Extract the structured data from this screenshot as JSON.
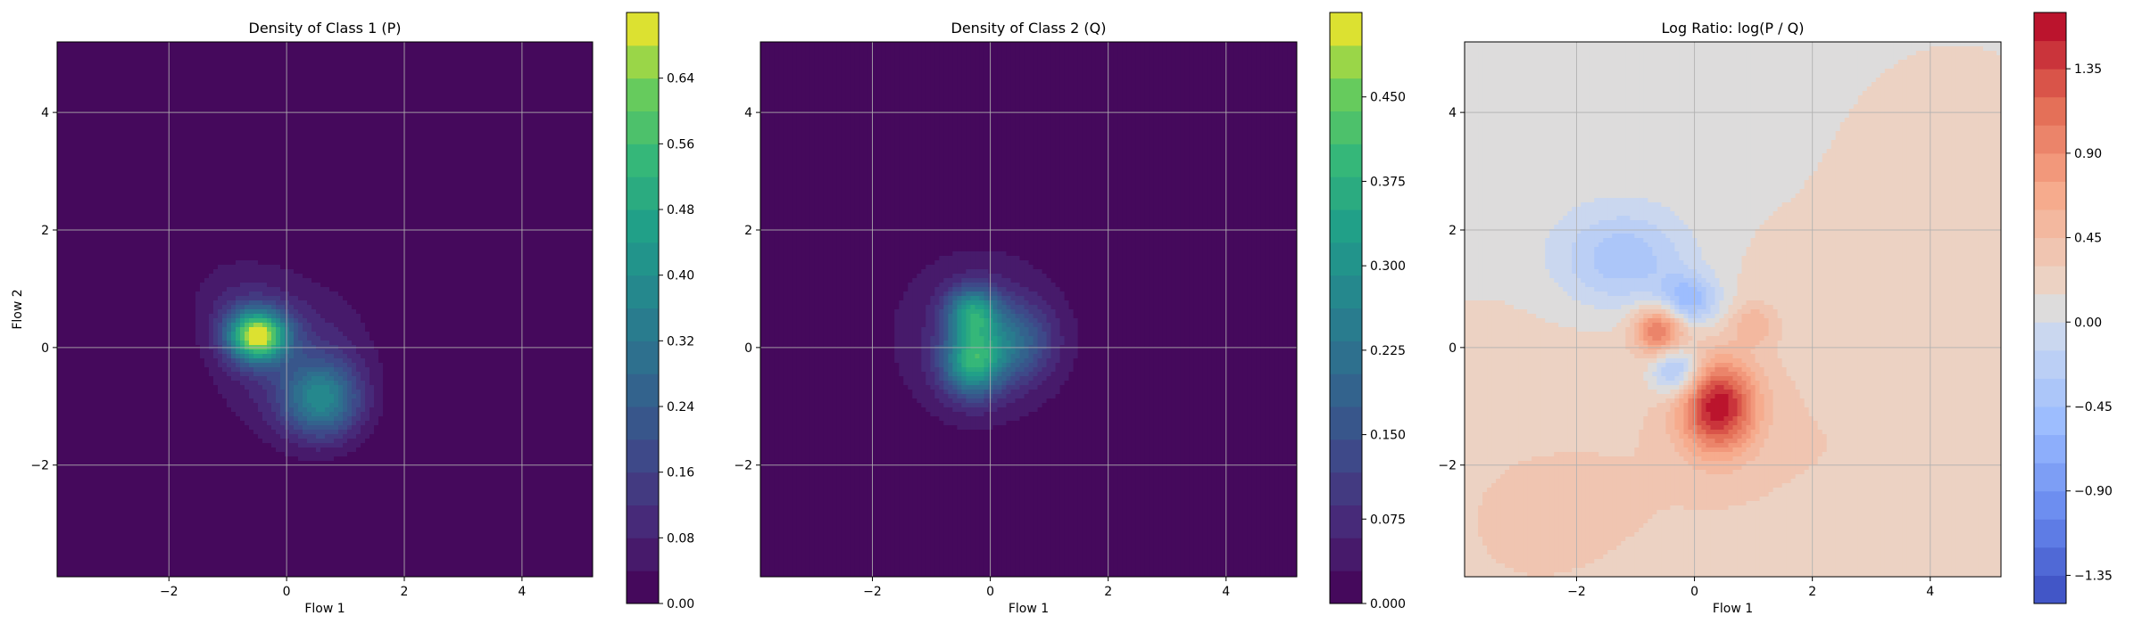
{
  "figure": {
    "background": "#ffffff"
  },
  "chart_data": [
    {
      "type": "heatmap",
      "title": "Density of Class 1 (P)",
      "xlabel": "Flow 1",
      "ylabel": "Flow 2",
      "xlim": [
        -3.9,
        5.2
      ],
      "ylim": [
        -3.9,
        5.2
      ],
      "xticks": [
        -2,
        0,
        2,
        4
      ],
      "yticks": [
        -2,
        0,
        2,
        4
      ],
      "xtick_labels": [
        "−2",
        "0",
        "2",
        "4"
      ],
      "ytick_labels": [
        "−2",
        "0",
        "2",
        "4"
      ],
      "grid": true,
      "colormap": "viridis",
      "colorbar": {
        "min": 0.0,
        "max": 0.72,
        "ticks": [
          0.0,
          0.08,
          0.16,
          0.24,
          0.32,
          0.4,
          0.48,
          0.56,
          0.64
        ],
        "tick_labels": [
          "0.00",
          "0.08",
          "0.16",
          "0.24",
          "0.32",
          "0.40",
          "0.48",
          "0.56",
          "0.64"
        ]
      },
      "density_components": [
        {
          "cx": -0.5,
          "cy": 0.2,
          "sx": 0.35,
          "sy": 0.3,
          "amp": 0.66
        },
        {
          "cx": 0.6,
          "cy": -0.9,
          "sx": 0.45,
          "sy": 0.45,
          "amp": 0.32
        },
        {
          "cx": 0.1,
          "cy": -0.2,
          "sx": 0.9,
          "sy": 0.9,
          "amp": 0.12
        },
        {
          "cx": -0.9,
          "cy": 0.9,
          "sx": 0.6,
          "sy": 0.5,
          "amp": 0.05
        }
      ]
    },
    {
      "type": "heatmap",
      "title": "Density of Class 2 (Q)",
      "xlabel": "Flow 1",
      "ylabel": "",
      "xlim": [
        -3.9,
        5.2
      ],
      "ylim": [
        -3.9,
        5.2
      ],
      "xticks": [
        -2,
        0,
        2,
        4
      ],
      "yticks": [
        -2,
        0,
        2,
        4
      ],
      "xtick_labels": [
        "−2",
        "0",
        "2",
        "4"
      ],
      "ytick_labels": [
        "−2",
        "0",
        "2",
        "4"
      ],
      "grid": true,
      "colormap": "viridis",
      "colorbar": {
        "min": 0.0,
        "max": 0.525,
        "ticks": [
          0.0,
          0.075,
          0.15,
          0.225,
          0.3,
          0.375,
          0.45
        ],
        "tick_labels": [
          "0.000",
          "0.075",
          "0.150",
          "0.225",
          "0.300",
          "0.375",
          "0.450"
        ]
      },
      "density_components": [
        {
          "cx": -0.3,
          "cy": -0.25,
          "sx": 0.35,
          "sy": 0.4,
          "amp": 0.3
        },
        {
          "cx": -0.3,
          "cy": 0.6,
          "sx": 0.3,
          "sy": 0.3,
          "amp": 0.26
        },
        {
          "cx": 0.4,
          "cy": 0.1,
          "sx": 0.45,
          "sy": 0.45,
          "amp": 0.15
        },
        {
          "cx": -0.2,
          "cy": 0.2,
          "sx": 1.1,
          "sy": 1.1,
          "amp": 0.07
        }
      ]
    },
    {
      "type": "heatmap",
      "title": "Log Ratio: log(P / Q)",
      "xlabel": "Flow 1",
      "ylabel": "",
      "xlim": [
        -3.9,
        5.2
      ],
      "ylim": [
        -3.9,
        5.2
      ],
      "xticks": [
        -2,
        0,
        2,
        4
      ],
      "yticks": [
        -2,
        0,
        2,
        4
      ],
      "xtick_labels": [
        "−2",
        "0",
        "2",
        "4"
      ],
      "ytick_labels": [
        "−2",
        "0",
        "2",
        "4"
      ],
      "grid": true,
      "colormap": "coolwarm",
      "colorbar": {
        "min": -1.5,
        "max": 1.65,
        "ticks": [
          -1.35,
          -0.9,
          -0.45,
          0.0,
          0.45,
          0.9,
          1.35
        ],
        "tick_labels": [
          "−1.35",
          "−0.90",
          "−0.45",
          "0.00",
          "0.45",
          "0.90",
          "1.35"
        ]
      },
      "ratio_components": [
        {
          "cx": 0.4,
          "cy": -1.0,
          "sx": 0.45,
          "sy": 0.55,
          "amp": 1.35
        },
        {
          "cx": -0.6,
          "cy": 0.3,
          "sx": 0.3,
          "sy": 0.3,
          "amp": 0.95
        },
        {
          "cx": 1.0,
          "cy": 0.4,
          "sx": 0.25,
          "sy": 0.25,
          "amp": 0.35
        },
        {
          "cx": -0.1,
          "cy": 0.8,
          "sx": 0.35,
          "sy": 0.3,
          "amp": -0.7
        },
        {
          "cx": -0.3,
          "cy": -0.4,
          "sx": 0.3,
          "sy": 0.3,
          "amp": -0.75
        },
        {
          "cx": -1.2,
          "cy": 1.5,
          "sx": 0.8,
          "sy": 0.6,
          "amp": -0.55
        },
        {
          "cx": 2.5,
          "cy": -1.5,
          "sx": 2.5,
          "sy": 2.5,
          "amp": 0.2
        },
        {
          "cx": -3.0,
          "cy": -3.0,
          "sx": 2.5,
          "sy": 2.5,
          "amp": 0.22
        },
        {
          "cx": 4.5,
          "cy": 3.5,
          "sx": 1.5,
          "sy": 1.5,
          "amp": 0.12
        }
      ]
    }
  ]
}
